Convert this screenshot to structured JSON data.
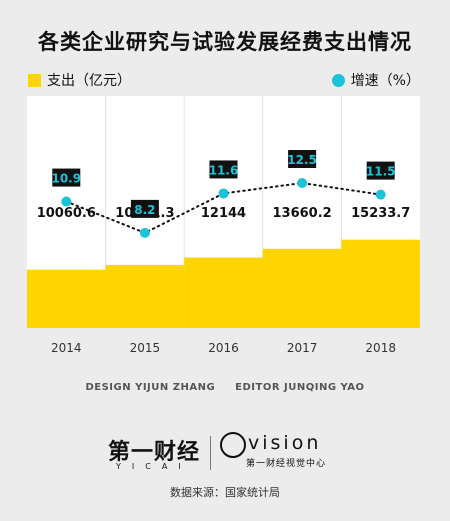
{
  "chart_data": {
    "type": "bar",
    "title": "各类企业研究与试验发展经费支出情况",
    "categories": [
      "2014",
      "2015",
      "2016",
      "2017",
      "2018"
    ],
    "series": [
      {
        "name": "支出（亿元）",
        "type": "bar",
        "values": [
          10060.6,
          10881.3,
          12144,
          13660.2,
          15233.7
        ],
        "color": "#ffd500"
      },
      {
        "name": "增速（%）",
        "type": "line",
        "values": [
          10.9,
          8.2,
          11.6,
          12.5,
          11.5
        ],
        "color": "#1ac3d8",
        "line_style": "dotted"
      }
    ],
    "ylim_bar": [
      0,
      40000
    ],
    "ylim_line": [
      0,
      20
    ],
    "grid": false
  },
  "credits": {
    "design": "DESIGN YIJUN ZHANG",
    "editor": "EDITOR JUNQING YAO"
  },
  "logos": {
    "left_main": "第一财经",
    "left_sub": "YICAI",
    "right_word": "vision",
    "right_sub": "第一财经视觉中心"
  },
  "source": "数据来源：国家统计局"
}
